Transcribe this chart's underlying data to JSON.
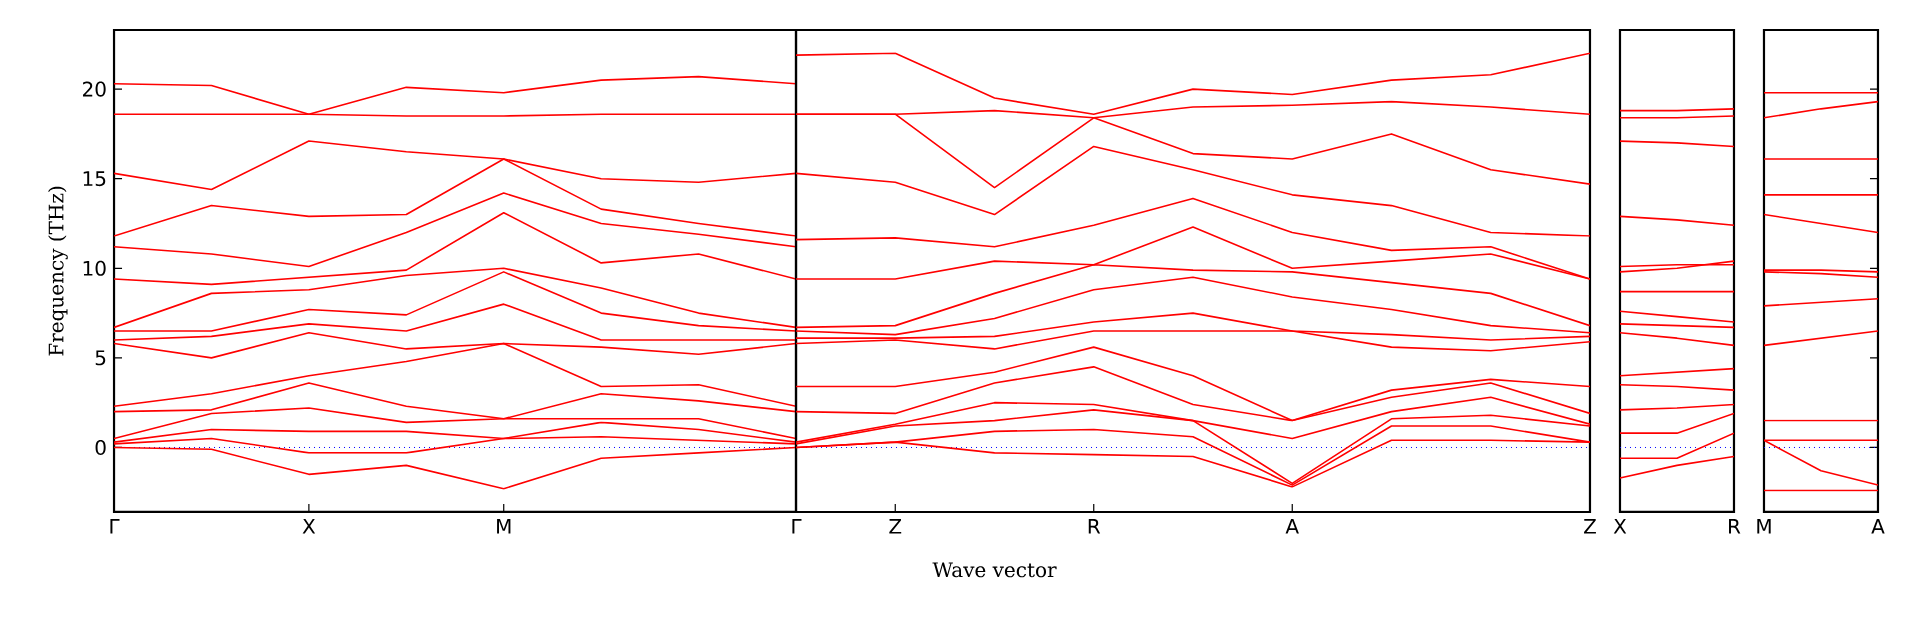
{
  "chart_data": [
    {
      "type": "line",
      "ylabel": "Frequency (THz)",
      "categories": [
        "Γ",
        null,
        "X",
        null,
        "M",
        null,
        null,
        null
      ],
      "ylim": [
        -3.6,
        23.3
      ],
      "yticks": [
        0,
        5,
        10,
        15,
        20
      ],
      "ref_lines": [
        {
          "axis": "y",
          "value": 0,
          "color": "#0000ff",
          "line_style": "dotted"
        }
      ],
      "series": [
        {
          "color": "#ff0000",
          "values": [
            0.0,
            -0.1,
            -1.5,
            -1.0,
            -2.3,
            -0.6,
            -0.3,
            0.0
          ]
        },
        {
          "color": "#ff0000",
          "values": [
            0.2,
            0.5,
            -0.3,
            -0.3,
            0.5,
            0.6,
            0.4,
            0.2
          ]
        },
        {
          "color": "#ff0000",
          "values": [
            0.3,
            1.0,
            0.9,
            0.9,
            0.5,
            1.4,
            1.0,
            0.3
          ]
        },
        {
          "color": "#ff0000",
          "values": [
            0.5,
            1.9,
            2.2,
            1.4,
            1.6,
            1.6,
            1.6,
            0.5
          ]
        },
        {
          "color": "#ff0000",
          "values": [
            2.0,
            2.1,
            3.6,
            2.3,
            1.6,
            3.0,
            2.6,
            2.0
          ]
        },
        {
          "color": "#ff0000",
          "values": [
            2.3,
            3.0,
            4.0,
            4.8,
            5.8,
            3.4,
            3.5,
            2.3
          ]
        },
        {
          "color": "#ff0000",
          "values": [
            5.8,
            5.0,
            6.4,
            5.5,
            5.8,
            5.6,
            5.2,
            5.8
          ]
        },
        {
          "color": "#ff0000",
          "values": [
            6.0,
            6.2,
            6.9,
            6.5,
            8.0,
            6.0,
            6.0,
            6.0
          ]
        },
        {
          "color": "#ff0000",
          "values": [
            6.5,
            6.5,
            7.7,
            7.4,
            9.8,
            7.5,
            6.8,
            6.5
          ]
        },
        {
          "color": "#ff0000",
          "values": [
            6.7,
            8.6,
            8.8,
            9.6,
            10.0,
            8.9,
            7.5,
            6.7
          ]
        },
        {
          "color": "#ff0000",
          "values": [
            9.4,
            9.1,
            9.5,
            9.9,
            13.1,
            10.3,
            10.8,
            9.4
          ]
        },
        {
          "color": "#ff0000",
          "values": [
            11.2,
            10.8,
            10.1,
            12.0,
            14.2,
            12.5,
            11.9,
            11.2
          ]
        },
        {
          "color": "#ff0000",
          "values": [
            11.8,
            13.5,
            12.9,
            13.0,
            16.1,
            13.3,
            12.5,
            11.8
          ]
        },
        {
          "color": "#ff0000",
          "values": [
            15.3,
            14.4,
            17.1,
            16.5,
            16.1,
            15.0,
            14.8,
            15.3
          ]
        },
        {
          "color": "#ff0000",
          "values": [
            18.6,
            18.6,
            18.6,
            18.5,
            18.5,
            18.6,
            18.6,
            18.6
          ]
        },
        {
          "color": "#ff0000",
          "values": [
            20.3,
            20.2,
            18.6,
            20.1,
            19.8,
            20.5,
            20.7,
            20.3
          ]
        }
      ]
    },
    {
      "type": "line",
      "xlabel": "Wave vector",
      "tick_labels": "x",
      "categories": [
        "Γ",
        "Z",
        null,
        "R",
        null,
        "A",
        null,
        null,
        "Z"
      ],
      "ylim": [
        -3.6,
        23.3
      ],
      "ref_lines": [
        {
          "axis": "y",
          "value": 0,
          "color": "#0000ff",
          "line_style": "dotted"
        }
      ],
      "series": [
        {
          "color": "#ff0000",
          "values": [
            0.0,
            0.3,
            -0.3,
            -0.4,
            -0.5,
            -2.2,
            0.4,
            0.4,
            0.3
          ]
        },
        {
          "color": "#ff0000",
          "values": [
            0.0,
            0.3,
            0.9,
            1.0,
            0.6,
            -2.1,
            1.2,
            1.2,
            0.3
          ]
        },
        {
          "color": "#ff0000",
          "values": [
            0.2,
            1.2,
            1.5,
            2.1,
            1.5,
            -2.0,
            1.6,
            1.8,
            1.2
          ]
        },
        {
          "color": "#ff0000",
          "values": [
            0.3,
            1.3,
            2.5,
            2.4,
            1.5,
            0.5,
            2.0,
            2.8,
            1.3
          ]
        },
        {
          "color": "#ff0000",
          "values": [
            2.0,
            1.9,
            3.6,
            4.5,
            2.4,
            1.5,
            2.8,
            3.6,
            1.9
          ]
        },
        {
          "color": "#ff0000",
          "values": [
            3.4,
            3.4,
            4.2,
            5.6,
            4.0,
            1.5,
            3.2,
            3.8,
            3.4
          ]
        },
        {
          "color": "#ff0000",
          "values": [
            5.8,
            6.0,
            5.5,
            6.5,
            6.5,
            6.5,
            5.6,
            5.4,
            5.9
          ]
        },
        {
          "color": "#ff0000",
          "values": [
            6.1,
            6.1,
            6.2,
            7.0,
            7.5,
            6.5,
            6.3,
            6.0,
            6.2
          ]
        },
        {
          "color": "#ff0000",
          "values": [
            6.5,
            6.3,
            7.2,
            8.8,
            9.5,
            8.4,
            7.7,
            6.8,
            6.4
          ]
        },
        {
          "color": "#ff0000",
          "values": [
            6.7,
            6.8,
            8.6,
            10.2,
            9.9,
            9.8,
            9.2,
            8.6,
            6.8
          ]
        },
        {
          "color": "#ff0000",
          "values": [
            9.4,
            9.4,
            10.4,
            10.2,
            12.3,
            10.0,
            10.4,
            10.8,
            9.4
          ]
        },
        {
          "color": "#ff0000",
          "values": [
            11.6,
            11.7,
            11.2,
            12.4,
            13.9,
            12.0,
            11.0,
            11.2,
            9.4
          ]
        },
        {
          "color": "#ff0000",
          "values": [
            15.3,
            14.8,
            13.0,
            16.8,
            15.5,
            14.1,
            13.5,
            12.0,
            11.8
          ]
        },
        {
          "color": "#ff0000",
          "values": [
            18.6,
            18.6,
            14.5,
            18.4,
            16.4,
            16.1,
            17.5,
            15.5,
            14.7
          ]
        },
        {
          "color": "#ff0000",
          "values": [
            18.6,
            18.6,
            18.8,
            18.4,
            19.0,
            19.1,
            19.3,
            19.0,
            18.6
          ]
        },
        {
          "color": "#ff0000",
          "values": [
            21.9,
            22.0,
            19.5,
            18.6,
            20.0,
            19.7,
            20.5,
            20.8,
            22.0
          ]
        }
      ]
    },
    {
      "type": "line",
      "tick_labels": "x",
      "categories": [
        "X",
        null,
        "R"
      ],
      "ylim": [
        -3.6,
        23.3
      ],
      "ref_lines": [
        {
          "axis": "y",
          "value": 0,
          "color": "#0000ff",
          "line_style": "dotted"
        }
      ],
      "series": [
        {
          "color": "#ff0000",
          "values": [
            -1.7,
            -1.0,
            -0.5
          ]
        },
        {
          "color": "#ff0000",
          "values": [
            -0.6,
            -0.6,
            0.8
          ]
        },
        {
          "color": "#ff0000",
          "values": [
            0.8,
            0.8,
            1.9
          ]
        },
        {
          "color": "#ff0000",
          "values": [
            2.1,
            2.2,
            2.4
          ]
        },
        {
          "color": "#ff0000",
          "values": [
            3.5,
            3.4,
            3.2
          ]
        },
        {
          "color": "#ff0000",
          "values": [
            4.0,
            4.2,
            4.4
          ]
        },
        {
          "color": "#ff0000",
          "values": [
            6.4,
            6.1,
            5.7
          ]
        },
        {
          "color": "#ff0000",
          "values": [
            6.9,
            6.8,
            6.7
          ]
        },
        {
          "color": "#ff0000",
          "values": [
            7.6,
            7.3,
            7.0
          ]
        },
        {
          "color": "#ff0000",
          "values": [
            8.7,
            8.7,
            8.7
          ]
        },
        {
          "color": "#ff0000",
          "values": [
            9.8,
            10.0,
            10.4
          ]
        },
        {
          "color": "#ff0000",
          "values": [
            10.1,
            10.2,
            10.2
          ]
        },
        {
          "color": "#ff0000",
          "values": [
            12.9,
            12.7,
            12.4
          ]
        },
        {
          "color": "#ff0000",
          "values": [
            17.1,
            17.0,
            16.8
          ]
        },
        {
          "color": "#ff0000",
          "values": [
            18.4,
            18.4,
            18.5
          ]
        },
        {
          "color": "#ff0000",
          "values": [
            18.8,
            18.8,
            18.9
          ]
        }
      ]
    },
    {
      "type": "line",
      "tick_labels": "x",
      "categories": [
        "M",
        null,
        "A"
      ],
      "ylim": [
        -3.6,
        23.3
      ],
      "yticks": [
        0,
        5,
        10,
        15,
        20
      ],
      "ref_lines": [
        {
          "axis": "y",
          "value": 0,
          "color": "#0000ff",
          "line_style": "dotted"
        }
      ],
      "series": [
        {
          "color": "#ff0000",
          "values": [
            -2.4,
            -2.4,
            -2.4
          ]
        },
        {
          "color": "#ff0000",
          "values": [
            0.4,
            -1.3,
            -2.1
          ]
        },
        {
          "color": "#ff0000",
          "values": [
            0.4,
            0.4,
            0.4
          ]
        },
        {
          "color": "#ff0000",
          "values": [
            1.5,
            1.5,
            1.5
          ]
        },
        {
          "color": "#ff0000",
          "values": [
            5.7,
            6.1,
            6.5
          ]
        },
        {
          "color": "#ff0000",
          "values": [
            7.9,
            8.1,
            8.3
          ]
        },
        {
          "color": "#ff0000",
          "values": [
            9.8,
            9.7,
            9.5
          ]
        },
        {
          "color": "#ff0000",
          "values": [
            9.9,
            9.9,
            9.8
          ]
        },
        {
          "color": "#ff0000",
          "values": [
            13.0,
            12.5,
            12.0
          ]
        },
        {
          "color": "#ff0000",
          "values": [
            14.1,
            14.1,
            14.1
          ]
        },
        {
          "color": "#ff0000",
          "values": [
            16.1,
            16.1,
            16.1
          ]
        },
        {
          "color": "#ff0000",
          "values": [
            18.4,
            18.9,
            19.3
          ]
        },
        {
          "color": "#ff0000",
          "values": [
            19.8,
            19.8,
            19.8
          ]
        }
      ]
    }
  ]
}
